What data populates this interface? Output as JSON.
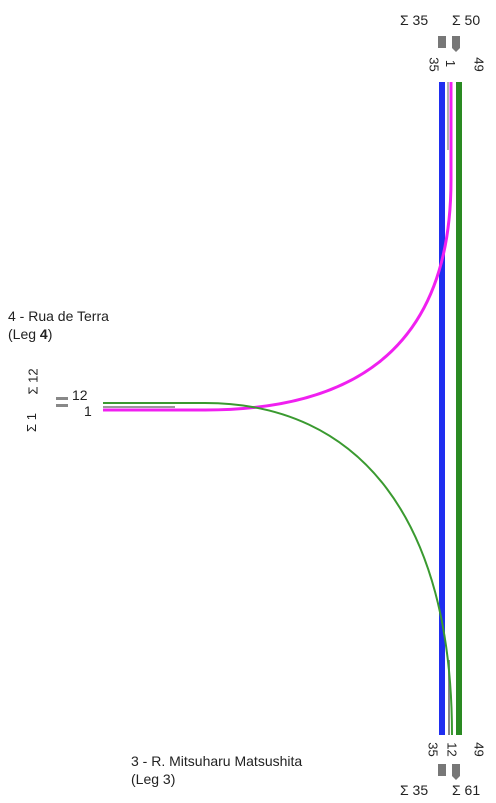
{
  "legs": {
    "leg4": {
      "name": "4 - Rua de Terra",
      "leg_prefix": "(Leg ",
      "leg_num": "4",
      "leg_suffix": ")",
      "sum_in": "Σ 12",
      "sum_out": "Σ 1",
      "lane_top": "12",
      "lane_bottom": "1"
    },
    "leg3": {
      "name": "3 - R. Mitsuharu Matsushita",
      "leg_text": "(Leg 3)",
      "sum_left": "Σ 35",
      "sum_right": "Σ 61",
      "count_a": "35",
      "count_b": "12",
      "count_c": "49"
    },
    "top": {
      "sum_left": "Σ 35",
      "sum_right": "Σ 50",
      "count_a": "35",
      "count_b": "1",
      "count_c": "49"
    }
  },
  "colors": {
    "blue": "#1f2ef0",
    "green": "#2a8a22",
    "magenta": "#f020f0",
    "curve_green": "#3a9a30",
    "gray": "#888888",
    "dark": "#333333"
  }
}
